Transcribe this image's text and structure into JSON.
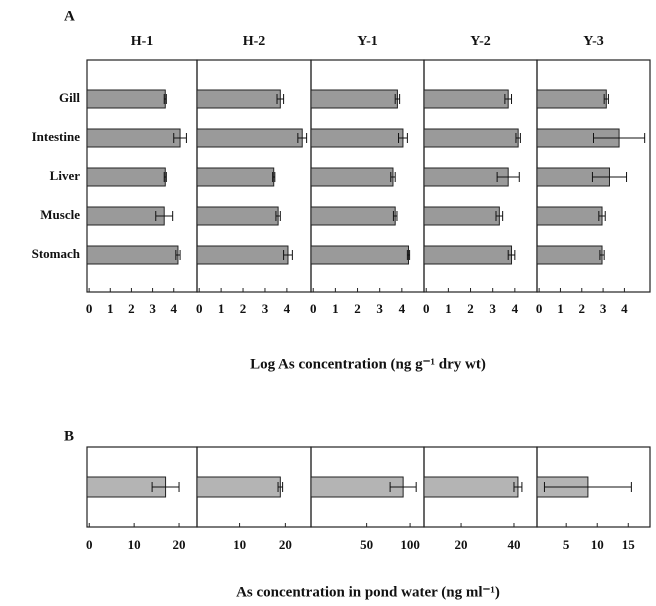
{
  "chart_data": [
    {
      "type": "bar",
      "panel": "A",
      "orientation": "horizontal",
      "color": "#9a9a9a",
      "categories": [
        "Gill",
        "Intestine",
        "Liver",
        "Muscle",
        "Stomach"
      ],
      "xlabel": "Log As concentration (ng g⁻¹ dry wt)",
      "facets": [
        {
          "title": "H-1",
          "values": [
            3.6,
            4.3,
            3.6,
            3.55,
            4.2
          ],
          "errors": [
            0.05,
            0.3,
            0.05,
            0.4,
            0.1
          ],
          "xlim": [
            -0.1,
            5.1
          ],
          "xticks": [
            0,
            1,
            2,
            3,
            4
          ]
        },
        {
          "title": "H-2",
          "values": [
            3.7,
            4.7,
            3.4,
            3.6,
            4.05
          ],
          "errors": [
            0.15,
            0.2,
            0.05,
            0.1,
            0.2
          ],
          "xlim": [
            -0.1,
            5.1
          ],
          "xticks": [
            0,
            1,
            2,
            3,
            4
          ]
        },
        {
          "title": "Y-1",
          "values": [
            3.8,
            4.05,
            3.6,
            3.7,
            4.3
          ],
          "errors": [
            0.1,
            0.2,
            0.1,
            0.08,
            0.05
          ],
          "xlim": [
            -0.1,
            5.0
          ],
          "xticks": [
            0,
            1,
            2,
            3,
            4
          ]
        },
        {
          "title": "Y-2",
          "values": [
            3.7,
            4.15,
            3.7,
            3.3,
            3.85
          ],
          "errors": [
            0.15,
            0.1,
            0.5,
            0.15,
            0.15
          ],
          "xlim": [
            -0.1,
            5.0
          ],
          "xticks": [
            0,
            1,
            2,
            3,
            4
          ]
        },
        {
          "title": "Y-3",
          "values": [
            3.15,
            3.75,
            3.3,
            2.95,
            2.95
          ],
          "errors": [
            0.1,
            1.2,
            0.8,
            0.15,
            0.1
          ],
          "xlim": [
            -0.1,
            5.2
          ],
          "xticks": [
            0,
            1,
            2,
            3,
            4
          ]
        }
      ]
    },
    {
      "type": "bar",
      "panel": "B",
      "orientation": "horizontal",
      "color": "#b4b4b4",
      "xlabel": "As concentration in pond water (ng ml⁻¹)",
      "facets": [
        {
          "values": [
            17
          ],
          "errors": [
            3
          ],
          "xlim": [
            -0.5,
            24
          ],
          "xticks": [
            0,
            10,
            20
          ]
        },
        {
          "values": [
            18.9
          ],
          "errors": [
            0.5
          ],
          "xlim": [
            0.7,
            25.6
          ],
          "xticks": [
            10,
            20
          ]
        },
        {
          "values": [
            92
          ],
          "errors": [
            15
          ],
          "xlim": [
            -14,
            116
          ],
          "xticks": [
            50,
            100
          ]
        },
        {
          "values": [
            41.5
          ],
          "errors": [
            1.5
          ],
          "xlim": [
            6,
            48.7
          ],
          "xticks": [
            20,
            40
          ]
        },
        {
          "values": [
            8.5
          ],
          "errors": [
            7
          ],
          "xlim": [
            0.3,
            18.5
          ],
          "xticks": [
            5,
            10,
            15
          ]
        }
      ]
    }
  ]
}
